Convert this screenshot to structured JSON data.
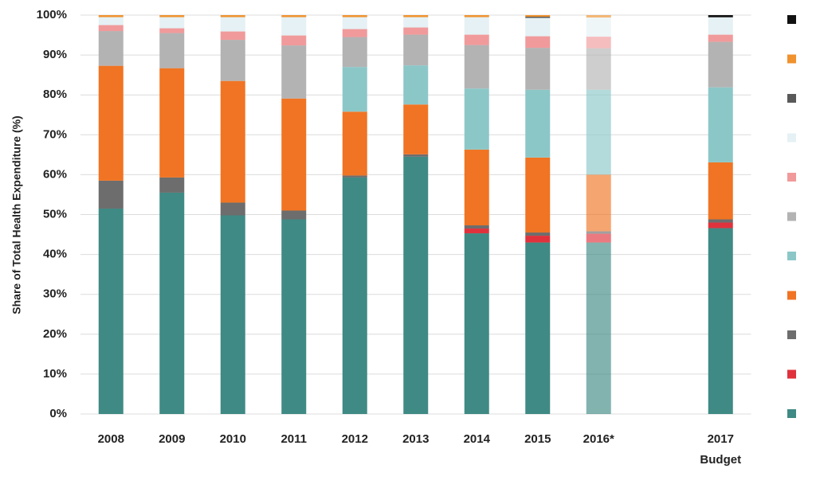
{
  "chart_data": {
    "type": "stacked_bar",
    "y_label": "Share of Total Health Expenditure (%)",
    "categories": [
      "2008",
      "2009",
      "2010",
      "2011",
      "2012",
      "2013",
      "2014",
      "2015",
      "2016*",
      null,
      "2017\nBudget"
    ],
    "ylim": [
      0,
      100
    ],
    "yticks": [
      {
        "value": 0,
        "label": "0%"
      },
      {
        "value": 10,
        "label": "10%"
      },
      {
        "value": 20,
        "label": "20%"
      },
      {
        "value": 30,
        "label": "30%"
      },
      {
        "value": 40,
        "label": "40%"
      },
      {
        "value": 50,
        "label": "50%"
      },
      {
        "value": 60,
        "label": "60%"
      },
      {
        "value": 70,
        "label": "70%"
      },
      {
        "value": 80,
        "label": "80%"
      },
      {
        "value": 90,
        "label": "90%"
      },
      {
        "value": 100,
        "label": "100%"
      }
    ],
    "grid": true,
    "legend": "right",
    "series": [
      {
        "color": "#3f8a84",
        "values": [
          51.5,
          55.5,
          49.8,
          48.8,
          59.3,
          64.5,
          45.3,
          43,
          43,
          null,
          46.6
        ]
      },
      {
        "color": "#e0323c",
        "values": [
          0,
          0,
          0,
          0,
          0,
          0,
          1.2,
          1.7,
          2.2,
          null,
          1.4
        ]
      },
      {
        "color": "#6d6d6d",
        "values": [
          7,
          3.8,
          3.2,
          2.2,
          0.5,
          0.6,
          0.8,
          0.8,
          0.6,
          null,
          0.8
        ]
      },
      {
        "color": "#f07423",
        "values": [
          28.8,
          27.4,
          30.5,
          28.1,
          16,
          12.5,
          19,
          18.8,
          14.2,
          null,
          14.3
        ]
      },
      {
        "color": "#8cc7c8",
        "values": [
          0,
          0,
          0,
          0,
          11.2,
          9.8,
          15.3,
          17,
          21.3,
          null,
          18.8
        ]
      },
      {
        "color": "#b3b3b3",
        "values": [
          8.7,
          8.8,
          10.3,
          13.3,
          7.5,
          7.7,
          10.9,
          10.5,
          10.4,
          null,
          11.4
        ]
      },
      {
        "color": "#f19a9b",
        "values": [
          1.5,
          1.2,
          2.1,
          2.5,
          2,
          1.8,
          2.6,
          2.9,
          2.9,
          null,
          1.8
        ]
      },
      {
        "color": "#e5f1f4",
        "values": [
          2,
          2.8,
          3.6,
          4.6,
          3,
          2.6,
          4.4,
          4.6,
          4.8,
          null,
          4.3
        ]
      },
      {
        "color": "#595959",
        "values": [
          0,
          0,
          0,
          0,
          0,
          0,
          0,
          0.3,
          0,
          null,
          0.2
        ]
      },
      {
        "color": "#f0922e",
        "values": [
          0.5,
          0.5,
          0.5,
          0.5,
          0.5,
          0.5,
          0.5,
          0.4,
          0.6,
          null,
          0
        ]
      },
      {
        "color": "#111111",
        "values": [
          0,
          0,
          0,
          0,
          0,
          0,
          0,
          0,
          0,
          null,
          0.4
        ]
      }
    ]
  }
}
